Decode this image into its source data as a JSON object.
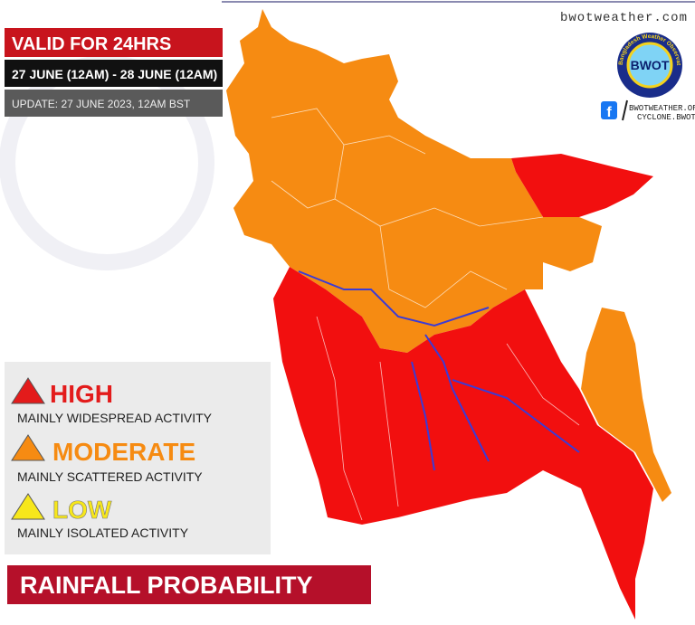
{
  "header": {
    "site": "bwotweather.com",
    "valid": "VALID FOR 24HRS",
    "period": "27 JUNE (12AM) - 28 JUNE (12AM)",
    "update": "UPDATE: 27 JUNE 2023, 12AM BST"
  },
  "logo": {
    "text": "BWOT",
    "ring": "Bangladesh Weather Observation Team"
  },
  "social": {
    "site": "BWOTWEATHER.ORG",
    "handle": "CYCLONE.BWOT"
  },
  "legend": {
    "items": [
      {
        "level": "HIGH",
        "description": "MAINLY WIDESPREAD ACTIVITY"
      },
      {
        "level": "MODERATE",
        "description": "MAINLY SCATTERED ACTIVITY"
      },
      {
        "level": "LOW",
        "description": "MAINLY ISOLATED ACTIVITY"
      }
    ]
  },
  "footer": {
    "title": "RAINFALL PROBABILITY"
  }
}
